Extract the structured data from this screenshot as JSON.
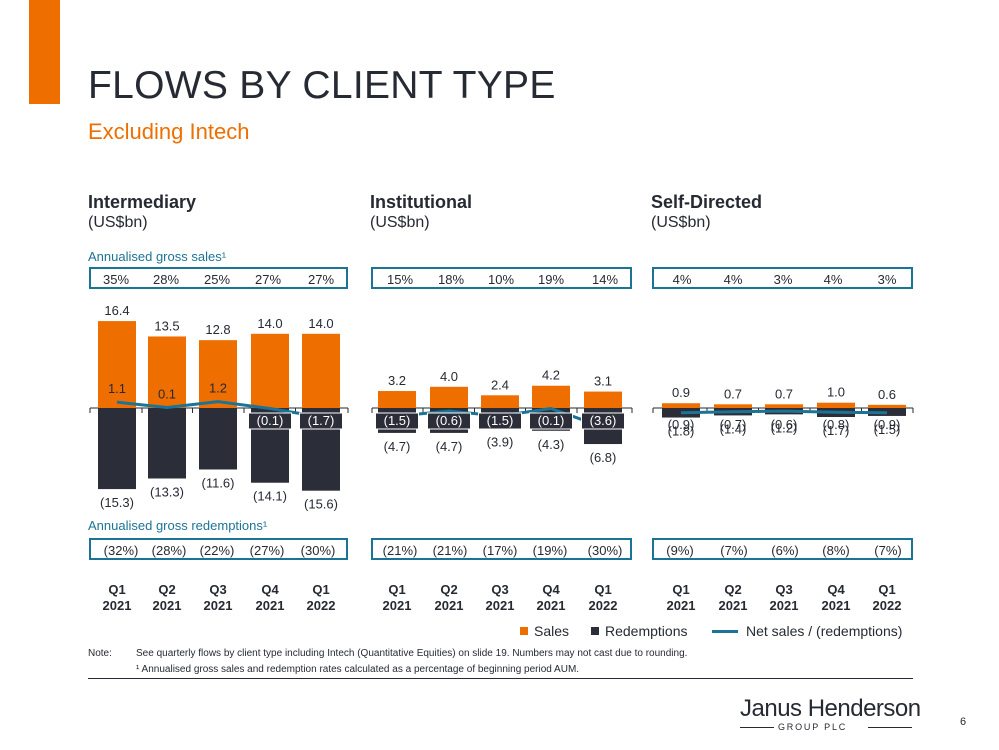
{
  "slide": {
    "title": "FLOWS BY CLIENT TYPE",
    "subtitle": "Excluding Intech",
    "page_number": "6",
    "sales_rate_label": "Annualised gross sales¹",
    "redemption_rate_label": "Annualised gross redemptions¹"
  },
  "legend": {
    "sales": "Sales",
    "redemptions": "Redemptions",
    "net": "Net sales / (redemptions)"
  },
  "notes": {
    "prefix": "Note:",
    "line1": "See quarterly flows by client type including Intech (Quantitative Equities) on slide 19. Numbers may not cast due to rounding.",
    "line2": "¹ Annualised gross sales and redemption rates calculated as a percentage of beginning period AUM."
  },
  "logo": {
    "name": "Janus Henderson",
    "sub": "GROUP PLC"
  },
  "colors": {
    "sales": "#ee6f00",
    "redemptions": "#2b2d38",
    "net": "#1b7495",
    "accent": "#ee6f00"
  },
  "panels": [
    {
      "title": "Intermediary",
      "unit": "(US$bn)",
      "sales_rates": [
        "35%",
        "28%",
        "25%",
        "27%",
        "27%"
      ],
      "redemption_rates": [
        "(32%)",
        "(28%)",
        "(22%)",
        "(27%)",
        "(30%)"
      ]
    },
    {
      "title": "Institutional",
      "unit": "(US$bn)",
      "sales_rates": [
        "15%",
        "18%",
        "10%",
        "19%",
        "14%"
      ],
      "redemption_rates": [
        "(21%)",
        "(21%)",
        "(17%)",
        "(19%)",
        "(30%)"
      ]
    },
    {
      "title": "Self-Directed",
      "unit": "(US$bn)",
      "sales_rates": [
        "4%",
        "4%",
        "3%",
        "4%",
        "3%"
      ],
      "redemption_rates": [
        "(9%)",
        "(7%)",
        "(6%)",
        "(8%)",
        "(7%)"
      ]
    }
  ],
  "chart_data": [
    {
      "type": "bar",
      "title": "Intermediary",
      "ylabel": "(US$bn)",
      "categories": [
        [
          "Q1",
          "2021"
        ],
        [
          "Q2",
          "2021"
        ],
        [
          "Q3",
          "2021"
        ],
        [
          "Q4",
          "2021"
        ],
        [
          "Q1",
          "2022"
        ]
      ],
      "series": [
        {
          "name": "Sales",
          "values": [
            16.4,
            13.5,
            12.8,
            14.0,
            14.0
          ],
          "labels": [
            "16.4",
            "13.5",
            "12.8",
            "14.0",
            "14.0"
          ]
        },
        {
          "name": "Redemptions",
          "values": [
            -15.3,
            -13.3,
            -11.6,
            -14.1,
            -15.6
          ],
          "labels": [
            "(15.3)",
            "(13.3)",
            "(11.6)",
            "(14.1)",
            "(15.6)"
          ]
        },
        {
          "name": "Net sales / (redemptions)",
          "type": "line",
          "values": [
            1.1,
            0.1,
            1.2,
            -0.1,
            -1.7
          ],
          "labels": [
            "1.1",
            "0.1",
            "1.2",
            "(0.1)",
            "(1.7)"
          ]
        }
      ]
    },
    {
      "type": "bar",
      "title": "Institutional",
      "ylabel": "(US$bn)",
      "categories": [
        [
          "Q1",
          "2021"
        ],
        [
          "Q2",
          "2021"
        ],
        [
          "Q3",
          "2021"
        ],
        [
          "Q4",
          "2021"
        ],
        [
          "Q1",
          "2022"
        ]
      ],
      "series": [
        {
          "name": "Sales",
          "values": [
            3.2,
            4.0,
            2.4,
            4.2,
            3.1
          ],
          "labels": [
            "3.2",
            "4.0",
            "2.4",
            "4.2",
            "3.1"
          ]
        },
        {
          "name": "Redemptions",
          "values": [
            -4.7,
            -4.7,
            -3.9,
            -4.3,
            -6.8
          ],
          "labels": [
            "(4.7)",
            "(4.7)",
            "(3.9)",
            "(4.3)",
            "(6.8)"
          ]
        },
        {
          "name": "Net sales / (redemptions)",
          "type": "line",
          "values": [
            -1.5,
            -0.6,
            -1.5,
            -0.1,
            -3.6
          ],
          "labels": [
            "(1.5)",
            "(0.6)",
            "(1.5)",
            "(0.1)",
            "(3.6)"
          ]
        }
      ]
    },
    {
      "type": "bar",
      "title": "Self-Directed",
      "ylabel": "(US$bn)",
      "categories": [
        [
          "Q1",
          "2021"
        ],
        [
          "Q2",
          "2021"
        ],
        [
          "Q3",
          "2021"
        ],
        [
          "Q4",
          "2021"
        ],
        [
          "Q1",
          "2022"
        ]
      ],
      "series": [
        {
          "name": "Sales",
          "values": [
            0.9,
            0.7,
            0.7,
            1.0,
            0.6
          ],
          "labels": [
            "0.9",
            "0.7",
            "0.7",
            "1.0",
            "0.6"
          ]
        },
        {
          "name": "Redemptions",
          "values": [
            -1.8,
            -1.4,
            -1.2,
            -1.7,
            -1.5
          ],
          "labels": [
            "(1.8)",
            "(1.4)",
            "(1.2)",
            "(1.7)",
            "(1.5)"
          ]
        },
        {
          "name": "Net sales / (redemptions)",
          "type": "line",
          "values": [
            -0.9,
            -0.7,
            -0.6,
            -0.8,
            -0.9
          ],
          "labels": [
            "(0.9)",
            "(0.7)",
            "(0.6)",
            "(0.8)",
            "(0.9)"
          ]
        }
      ]
    }
  ]
}
